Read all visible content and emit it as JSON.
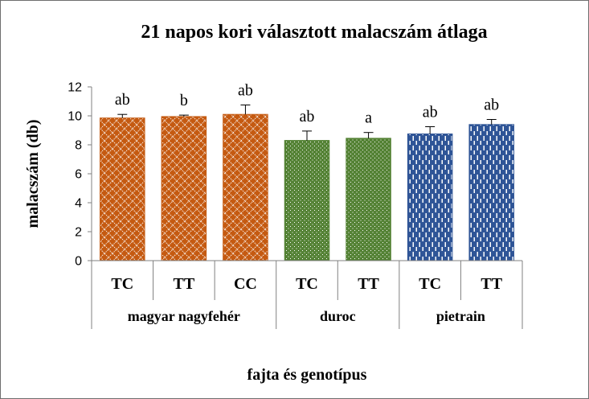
{
  "chart_data": {
    "type": "bar",
    "title": "21 napos kori választott malacszám átlaga",
    "xlabel": "fajta és genotípus",
    "ylabel": "malacszám (db)",
    "ylim": [
      0,
      12
    ],
    "yticks": [
      "0",
      "2",
      "4",
      "6",
      "8",
      "10",
      "12"
    ],
    "grid": false,
    "legend": "none",
    "groups": [
      {
        "name": "magyar nagyfehér",
        "color": "#c55a11",
        "pattern": "diamond-lattice",
        "bars": [
          {
            "genotype": "TC",
            "value": 9.85,
            "error": 0.25,
            "label": "ab"
          },
          {
            "genotype": "TT",
            "value": 9.95,
            "error": 0.1,
            "label": "b"
          },
          {
            "genotype": "CC",
            "value": 10.1,
            "error": 0.65,
            "label": "ab"
          }
        ]
      },
      {
        "name": "duroc",
        "color": "#548235",
        "pattern": "dotted",
        "bars": [
          {
            "genotype": "TC",
            "value": 8.3,
            "error": 0.65,
            "label": "ab"
          },
          {
            "genotype": "TT",
            "value": 8.45,
            "error": 0.4,
            "label": "a"
          }
        ]
      },
      {
        "name": "pietrain",
        "color": "#2f5597",
        "pattern": "dashed-vertical",
        "bars": [
          {
            "genotype": "TC",
            "value": 8.75,
            "error": 0.5,
            "label": "ab"
          },
          {
            "genotype": "TT",
            "value": 9.4,
            "error": 0.35,
            "label": "ab"
          }
        ]
      }
    ]
  }
}
